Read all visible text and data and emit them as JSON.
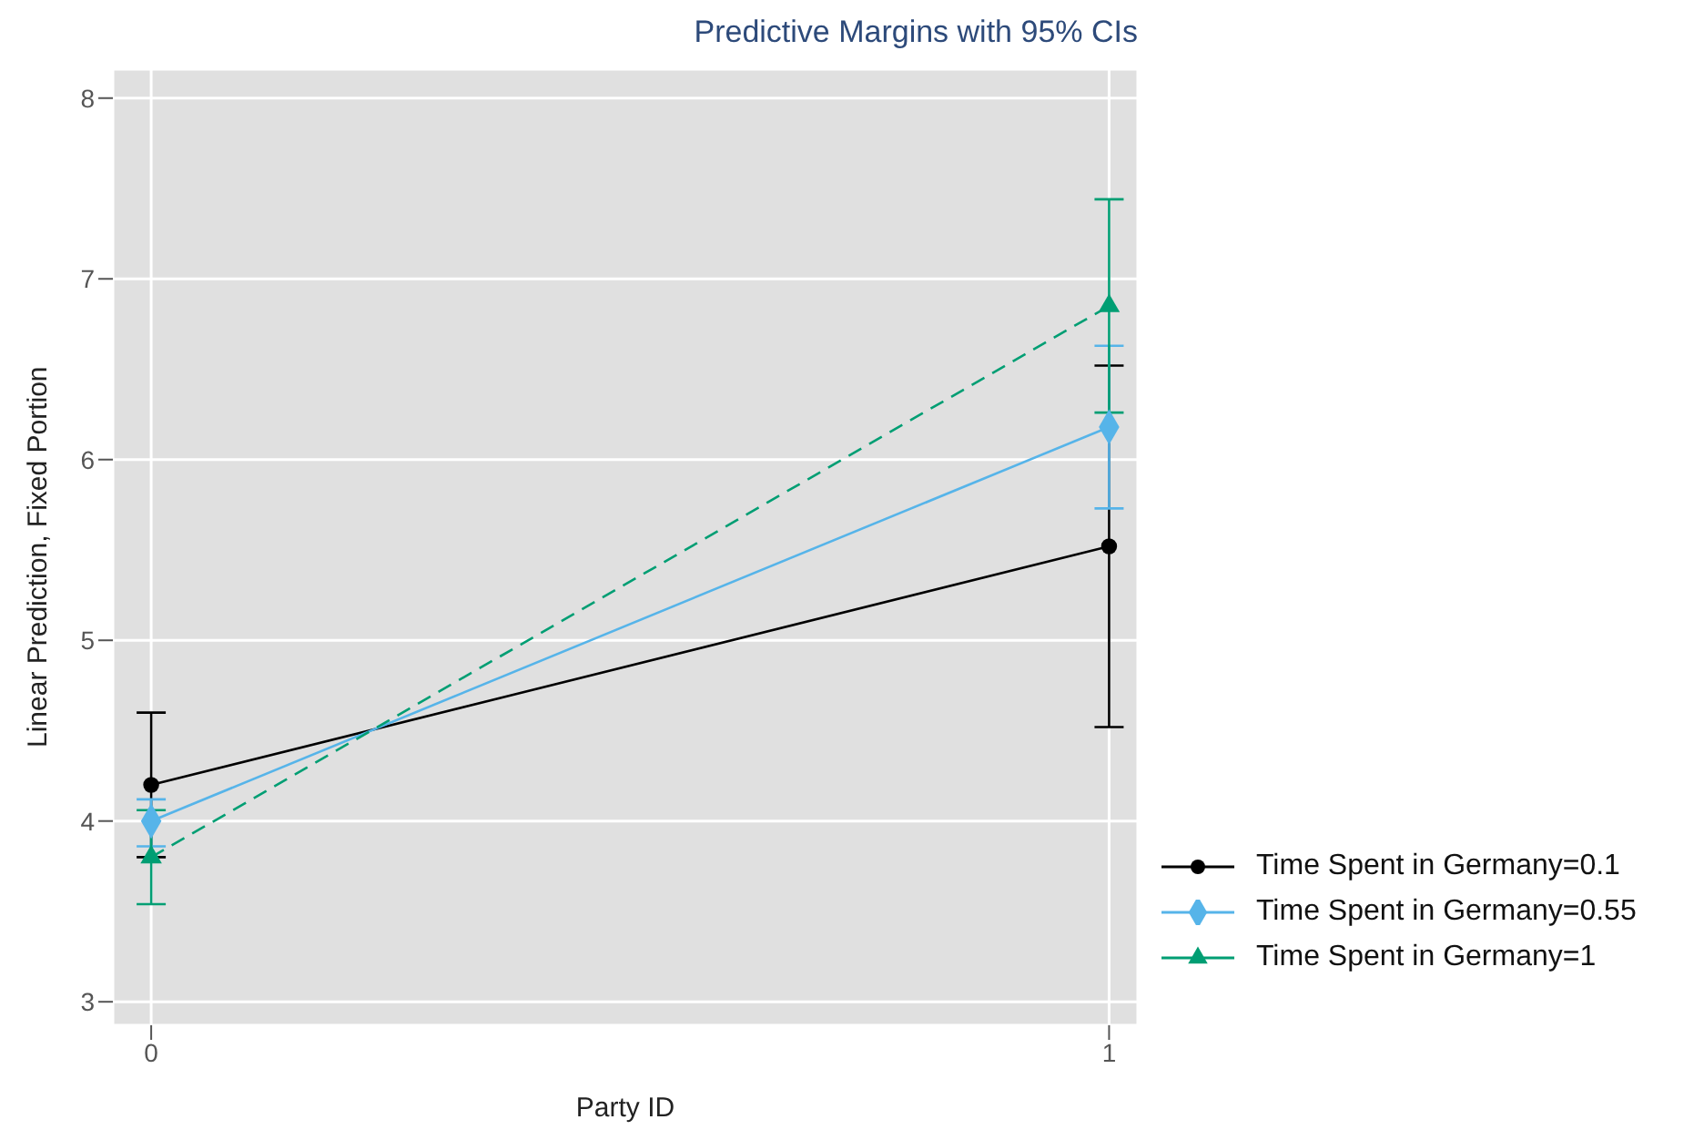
{
  "chart_data": {
    "type": "line",
    "title": "Predictive Margins with 95% CIs",
    "xlabel": "Party ID",
    "ylabel": "Linear Prediction, Fixed Portion",
    "x": [
      0,
      1
    ],
    "xlim": [
      -0.04,
      1.03
    ],
    "xticks": [
      0,
      1
    ],
    "ylim": [
      2.87,
      8.16
    ],
    "yticks": [
      3,
      4,
      5,
      6,
      7,
      8
    ],
    "series": [
      {
        "name": "Time Spent in Germany=0.1",
        "color": "#000000",
        "values": [
          4.2,
          5.52
        ],
        "errors": [
          [
            3.8,
            4.6
          ],
          [
            4.52,
            6.52
          ]
        ],
        "marker": "circle",
        "line_style": "solid"
      },
      {
        "name": "Time Spent in Germany=0.55",
        "color": "#56b4e9",
        "values": [
          4.0,
          6.18
        ],
        "errors": [
          [
            3.86,
            4.12
          ],
          [
            5.73,
            6.63
          ]
        ],
        "marker": "diamond",
        "line_style": "solid"
      },
      {
        "name": "Time Spent in Germany=1",
        "color": "#009e73",
        "values": [
          3.8,
          6.85
        ],
        "errors": [
          [
            3.54,
            4.06
          ],
          [
            6.26,
            7.44
          ]
        ],
        "marker": "triangle",
        "line_style": "dashed"
      }
    ],
    "grid": true,
    "legend": "bottom right"
  }
}
